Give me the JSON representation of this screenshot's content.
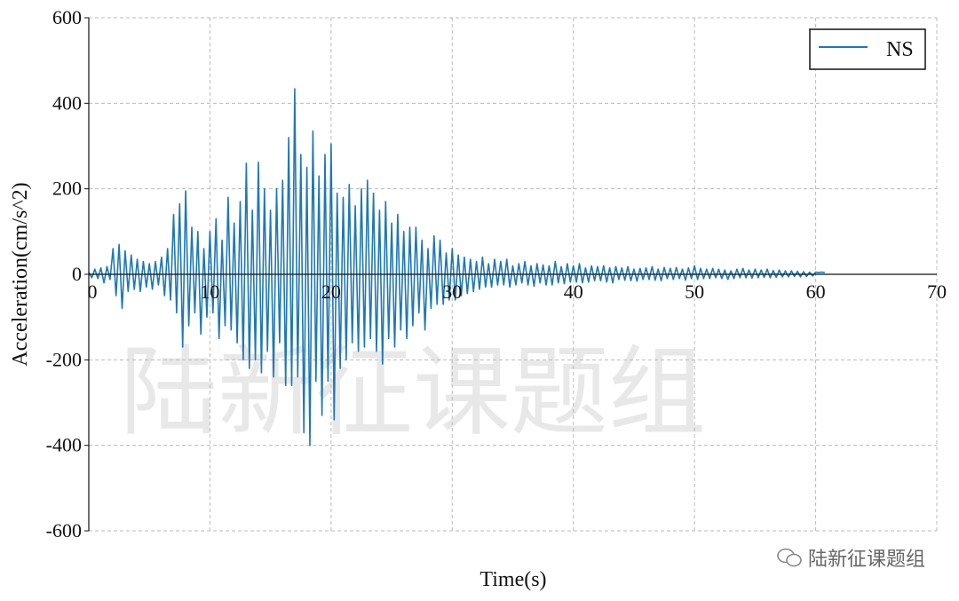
{
  "chart_data": {
    "type": "line",
    "xlabel": "Time(s)",
    "ylabel": "Acceleration(cm/s^2)",
    "xlim": [
      0,
      70
    ],
    "ylim": [
      -600,
      600
    ],
    "xticks": [
      0,
      10,
      20,
      30,
      40,
      50,
      60,
      70
    ],
    "yticks": [
      600,
      400,
      200,
      0,
      -200,
      -400,
      -600
    ],
    "grid": true,
    "legend_position": "top-right",
    "series": [
      {
        "name": "NS",
        "color": "#1f77b4",
        "x_start": 0,
        "x_step": 0.25,
        "values": [
          5,
          -8,
          12,
          -10,
          15,
          -20,
          18,
          -12,
          60,
          -50,
          70,
          -80,
          55,
          -40,
          45,
          -35,
          35,
          -40,
          30,
          -30,
          25,
          -35,
          30,
          -25,
          40,
          -50,
          60,
          -60,
          140,
          -90,
          165,
          -170,
          195,
          -120,
          110,
          -90,
          100,
          -140,
          60,
          -100,
          100,
          -90,
          130,
          -150,
          80,
          -120,
          180,
          -130,
          120,
          -160,
          170,
          -200,
          260,
          -220,
          150,
          -200,
          262,
          -230,
          200,
          -180,
          150,
          -240,
          200,
          -160,
          220,
          -260,
          320,
          -260,
          434,
          -240,
          280,
          -370,
          250,
          -400,
          335,
          -250,
          230,
          -330,
          280,
          -250,
          305,
          -340,
          190,
          -220,
          180,
          -200,
          210,
          -160,
          160,
          -180,
          200,
          -170,
          220,
          -150,
          190,
          -180,
          150,
          -210,
          170,
          -150,
          120,
          -170,
          140,
          -130,
          100,
          -150,
          110,
          -120,
          110,
          -90,
          80,
          -130,
          60,
          -80,
          90,
          -70,
          80,
          -70,
          50,
          -60,
          60,
          -60,
          45,
          -50,
          40,
          -45,
          35,
          -40,
          30,
          -35,
          40,
          -30,
          25,
          -30,
          35,
          -25,
          30,
          -25,
          35,
          -30,
          20,
          -25,
          25,
          -20,
          30,
          -25,
          20,
          -28,
          25,
          -20,
          22,
          -25,
          20,
          -25,
          30,
          -20,
          18,
          -22,
          25,
          -18,
          20,
          -18,
          25,
          -20,
          15,
          -18,
          20,
          -15,
          18,
          -15,
          20,
          -18,
          15,
          -20,
          18,
          -12,
          15,
          -14,
          18,
          -15,
          12,
          -16,
          14,
          -12,
          15,
          -12,
          18,
          -14,
          12,
          -15,
          16,
          -10,
          14,
          -12,
          16,
          -10,
          12,
          -14,
          15,
          -10,
          20,
          -12,
          14,
          -10,
          12,
          -10,
          14,
          -8,
          12,
          -10,
          10,
          -12,
          8,
          -10,
          12,
          -8,
          14,
          -8,
          10,
          -9,
          12,
          -8,
          10,
          -7,
          12,
          -8,
          9,
          -7,
          10,
          -6,
          8,
          -6,
          8,
          -5,
          7,
          -6,
          6,
          -5,
          5,
          -4,
          5,
          4,
          5,
          4
        ]
      }
    ]
  },
  "watermark": "陆新征课题组",
  "footer": {
    "icon": "wechat-icon",
    "text": "陆新征课题组"
  }
}
